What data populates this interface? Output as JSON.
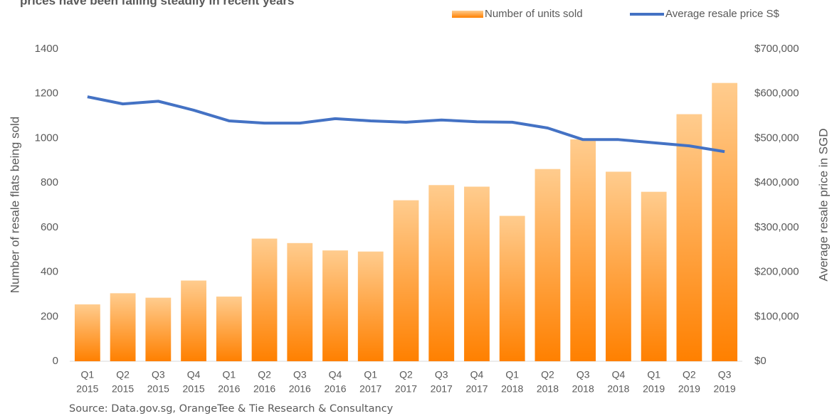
{
  "chart_data": {
    "type": "bar_line",
    "title": "prices have been falling steadily in recent years",
    "source": "Source: Data.gov.sg, OrangeTee & Tie Research & Consultancy",
    "y_label": "Number of resale flats being sold",
    "y2_label": "Average resale price in SGD",
    "categories": [
      [
        "Q1",
        "2015"
      ],
      [
        "Q2",
        "2015"
      ],
      [
        "Q3",
        "2015"
      ],
      [
        "Q4",
        "2015"
      ],
      [
        "Q1",
        "2016"
      ],
      [
        "Q2",
        "2016"
      ],
      [
        "Q3",
        "2016"
      ],
      [
        "Q4",
        "2016"
      ],
      [
        "Q1",
        "2017"
      ],
      [
        "Q2",
        "2017"
      ],
      [
        "Q3",
        "2017"
      ],
      [
        "Q4",
        "2017"
      ],
      [
        "Q1",
        "2018"
      ],
      [
        "Q2",
        "2018"
      ],
      [
        "Q3",
        "2018"
      ],
      [
        "Q4",
        "2018"
      ],
      [
        "Q1",
        "2019"
      ],
      [
        "Q2",
        "2019"
      ],
      [
        "Q3",
        "2019"
      ]
    ],
    "series": [
      {
        "name": "Number of units sold",
        "kind": "bar",
        "color": "#ff8000",
        "values": [
          255,
          305,
          285,
          362,
          290,
          550,
          530,
          497,
          492,
          722,
          790,
          783,
          652,
          862,
          995,
          850,
          760,
          1108,
          1248
        ]
      },
      {
        "name": "Average resale price S$",
        "kind": "line",
        "axis": "y2",
        "color": "#4472c4",
        "values": [
          593000,
          577000,
          583000,
          563000,
          539000,
          534000,
          534000,
          544000,
          539000,
          536000,
          541000,
          537000,
          536000,
          523000,
          497000,
          497000,
          490000,
          483000,
          470000
        ]
      }
    ],
    "ylim": [
      0,
      1400
    ],
    "yticks": [
      0,
      200,
      400,
      600,
      800,
      1000,
      1200,
      1400
    ],
    "y2lim": [
      0,
      700000
    ],
    "y2ticks": [
      {
        "value": 0,
        "label": "$0"
      },
      {
        "value": 100000,
        "label": "$100,000"
      },
      {
        "value": 200000,
        "label": "$200,000"
      },
      {
        "value": 300000,
        "label": "$300,000"
      },
      {
        "value": 400000,
        "label": "$400,000"
      },
      {
        "value": 500000,
        "label": "$500,000"
      },
      {
        "value": 600000,
        "label": "$600,000"
      },
      {
        "value": 700000,
        "label": "$700,000"
      }
    ],
    "legend": "top-right"
  }
}
